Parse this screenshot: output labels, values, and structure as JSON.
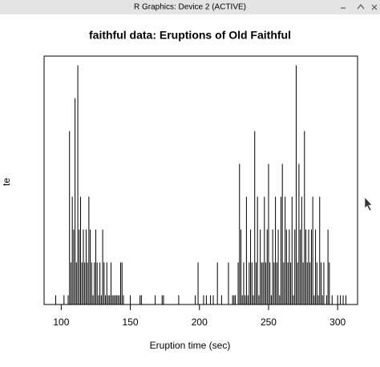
{
  "window_title": "R Graphics: Device 2 (ACTIVE)",
  "chart_data": {
    "type": "stem",
    "title": "faithful data: Eruptions of Old Faithful",
    "x_label": "Eruption time (sec)",
    "y_label": "te",
    "color": "#000000",
    "x": [
      96,
      102,
      105,
      106,
      107,
      108,
      109,
      110,
      111,
      112,
      113,
      114,
      115,
      116,
      117,
      118,
      119,
      120,
      121,
      122,
      123,
      124,
      125,
      126,
      127,
      128,
      129,
      130,
      131,
      132,
      133,
      134,
      135,
      136,
      137,
      138,
      139,
      140,
      141,
      142,
      143,
      144,
      145,
      150,
      157,
      158,
      168,
      173,
      174,
      185,
      197,
      199,
      203,
      205,
      208,
      210,
      213,
      216,
      221,
      224,
      225,
      226,
      228,
      229,
      230,
      231,
      232,
      233,
      234,
      235,
      236,
      237,
      238,
      239,
      240,
      241,
      242,
      243,
      244,
      245,
      246,
      247,
      248,
      249,
      250,
      251,
      252,
      253,
      254,
      255,
      256,
      257,
      258,
      259,
      260,
      261,
      262,
      263,
      264,
      265,
      266,
      267,
      268,
      269,
      270,
      271,
      272,
      273,
      274,
      275,
      276,
      277,
      278,
      279,
      280,
      281,
      282,
      283,
      284,
      285,
      286,
      287,
      288,
      289,
      290,
      292,
      293,
      294,
      296,
      300,
      302,
      304,
      306
    ],
    "values": [
      1,
      1,
      1,
      6,
      2,
      4,
      3,
      7,
      2,
      8,
      3,
      4,
      2,
      3,
      2,
      3,
      2,
      4,
      3,
      2,
      1,
      2,
      3,
      2,
      1,
      2,
      1,
      3,
      2,
      1,
      2,
      1,
      1,
      2,
      1,
      1,
      1,
      1,
      1,
      1,
      2,
      2,
      1,
      1,
      1,
      1,
      1,
      1,
      1,
      1,
      1,
      2,
      1,
      1,
      1,
      1,
      2,
      1,
      2,
      1,
      1,
      1,
      2,
      5,
      3,
      1,
      2,
      1,
      4,
      1,
      2,
      3,
      2,
      1,
      6,
      2,
      4,
      1,
      3,
      2,
      2,
      4,
      2,
      3,
      5,
      2,
      1,
      3,
      2,
      4,
      2,
      3,
      1,
      4,
      5,
      2,
      4,
      3,
      2,
      3,
      2,
      4,
      1,
      3,
      8,
      2,
      5,
      3,
      4,
      2,
      6,
      3,
      2,
      3,
      2,
      3,
      4,
      1,
      3,
      2,
      1,
      4,
      2,
      1,
      2,
      1,
      3,
      2,
      1,
      1,
      1,
      1,
      1
    ],
    "xlim": [
      87.6,
      314.4
    ],
    "ylim": [
      0.72,
      8.28
    ],
    "xticks": [
      100,
      150,
      200,
      250,
      300
    ]
  }
}
